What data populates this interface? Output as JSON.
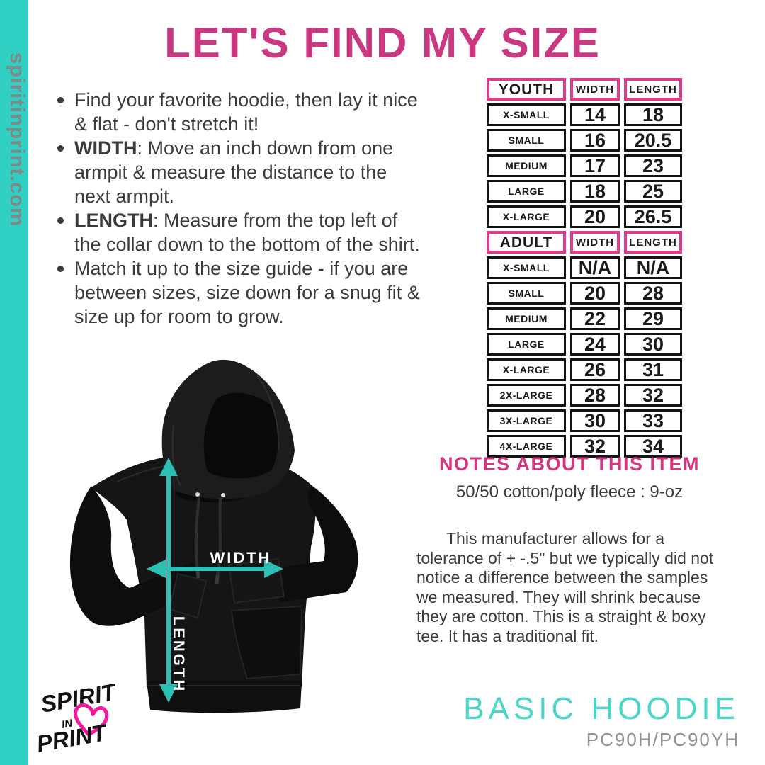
{
  "brand": {
    "website": "spiritinprint.com",
    "logo_line1": "SPIRIT",
    "logo_line2": "IN",
    "logo_line3": "PRINT"
  },
  "header": {
    "title": "LET'S FIND MY SIZE"
  },
  "instructions": [
    {
      "bold": "",
      "text": "Find your favorite hoodie, then lay it nice & flat - don't stretch it!"
    },
    {
      "bold": "WIDTH",
      "text": ": Move an inch down from one armpit & measure the distance to the next armpit."
    },
    {
      "bold": "LENGTH",
      "text": ": Measure from the top left of the collar down to the bottom of the shirt."
    },
    {
      "bold": "",
      "text": "Match it up to the size guide - if you are between sizes, size down for a snug fit & size up for room to grow."
    }
  ],
  "size_table": {
    "sections": [
      {
        "group": "YOUTH",
        "columns": {
          "width": "WIDTH",
          "length": "LENGTH"
        },
        "rows": [
          {
            "size": "X-SMALL",
            "width": "14",
            "length": "18"
          },
          {
            "size": "SMALL",
            "width": "16",
            "length": "20.5"
          },
          {
            "size": "MEDIUM",
            "width": "17",
            "length": "23"
          },
          {
            "size": "LARGE",
            "width": "18",
            "length": "25"
          },
          {
            "size": "X-LARGE",
            "width": "20",
            "length": "26.5"
          }
        ]
      },
      {
        "group": "ADULT",
        "columns": {
          "width": "WIDTH",
          "length": "LENGTH"
        },
        "rows": [
          {
            "size": "X-SMALL",
            "width": "N/A",
            "length": "N/A"
          },
          {
            "size": "SMALL",
            "width": "20",
            "length": "28"
          },
          {
            "size": "MEDIUM",
            "width": "22",
            "length": "29"
          },
          {
            "size": "LARGE",
            "width": "24",
            "length": "30"
          },
          {
            "size": "X-LARGE",
            "width": "26",
            "length": "31"
          },
          {
            "size": "2X-LARGE",
            "width": "28",
            "length": "32"
          },
          {
            "size": "3X-LARGE",
            "width": "30",
            "length": "33"
          },
          {
            "size": "4X-LARGE",
            "width": "32",
            "length": "34"
          }
        ]
      }
    ]
  },
  "diagram": {
    "width_label": "WIDTH",
    "length_label": "LENGTH"
  },
  "notes": {
    "heading": "NOTES ABOUT THIS ITEM",
    "fabric": "50/50 cotton/poly fleece : 9-oz",
    "body": "This manufacturer allows for a tolerance of + -.5\" but we typically did not notice a difference between the samples we measured. They will shrink because they are cotton. This is a straight & boxy tee. It has a traditional fit."
  },
  "footer": {
    "product_name": "BASIC HOODIE",
    "product_code": "PC90H/PC90YH"
  },
  "colors": {
    "accent_teal": "#2FCFC4",
    "arrow_teal": "#2CC0B5",
    "brand_pink": "#D5357F",
    "table_border_pink": "#DC3C8C",
    "text_dark": "#3B3B3D",
    "code_gray": "#929292"
  }
}
